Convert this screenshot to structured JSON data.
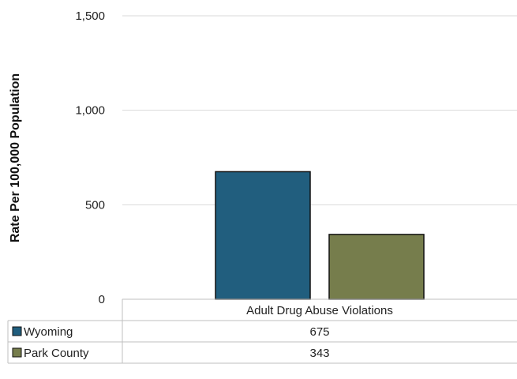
{
  "chart_data": {
    "type": "bar",
    "title": "",
    "xlabel": "",
    "ylabel": "Rate Per 100,000 Population",
    "ylim": [
      0,
      1500
    ],
    "yticks": [
      0,
      500,
      1000,
      1500
    ],
    "ytick_labels": [
      "0",
      "500",
      "1,000",
      "1,500"
    ],
    "grid": true,
    "legend": "data table",
    "categories": [
      "Adult Drug Abuse Violations"
    ],
    "series": [
      {
        "name": "Wyoming",
        "values": [
          675
        ],
        "value_labels": [
          "675"
        ],
        "color": "#215e7e"
      },
      {
        "name": "Park County",
        "values": [
          343
        ],
        "value_labels": [
          "343"
        ],
        "color": "#767d4c"
      }
    ]
  }
}
